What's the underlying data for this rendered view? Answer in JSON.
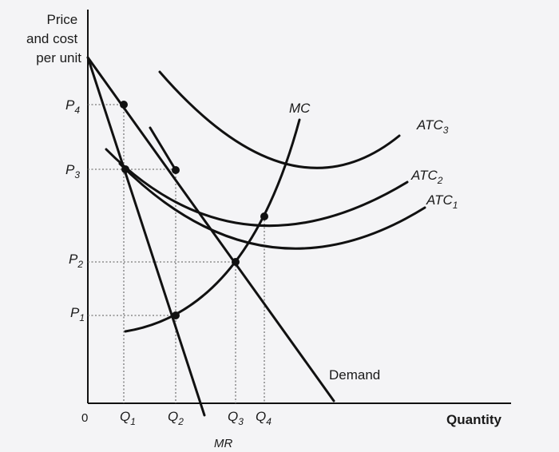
{
  "axes": {
    "y_title_lines": [
      "Price",
      "and cost",
      "per unit"
    ],
    "x_title": "Quantity",
    "origin": "0"
  },
  "price_levels": [
    {
      "base": "P",
      "sub": "4"
    },
    {
      "base": "P",
      "sub": "3"
    },
    {
      "base": "P",
      "sub": "2"
    },
    {
      "base": "P",
      "sub": "1"
    }
  ],
  "quantity_levels": [
    {
      "base": "Q",
      "sub": "1"
    },
    {
      "base": "Q",
      "sub": "2"
    },
    {
      "base": "Q",
      "sub": "3"
    },
    {
      "base": "Q",
      "sub": "4"
    }
  ],
  "curves": {
    "mc": "MC",
    "demand": "Demand",
    "mr": "MR",
    "atc3": {
      "base": "ATC",
      "sub": "3"
    },
    "atc2": {
      "base": "ATC",
      "sub": "2"
    },
    "atc1": {
      "base": "ATC",
      "sub": "1"
    }
  },
  "colors": {
    "background": "#f4f4f6",
    "curve": "#111111",
    "guide": "#777777"
  }
}
